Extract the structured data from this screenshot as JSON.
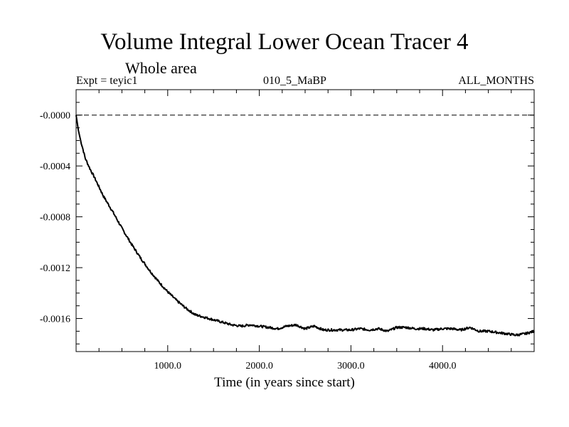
{
  "chart_data": {
    "type": "line",
    "title": "Volume Integral Lower Ocean Tracer 4",
    "subtitle": "Whole area",
    "experiment": "Expt = teyic1",
    "center_label": "010_5_MaBP",
    "right_label": "ALL_MONTHS",
    "xlabel": "Time (in years since start)",
    "ylabel": "",
    "xlim": [
      0,
      5000
    ],
    "ylim": [
      -0.00186,
      0.0002
    ],
    "x_ticks": [
      1000,
      2000,
      3000,
      4000
    ],
    "x_tick_labels": [
      "1000.0",
      "2000.0",
      "3000.0",
      "4000.0"
    ],
    "y_ticks": [
      0.0,
      -0.0004,
      -0.0008,
      -0.0012,
      -0.0016
    ],
    "y_tick_labels": [
      "-0.0000",
      "-0.0004",
      "-0.0008",
      "-0.0012",
      "-0.0016"
    ],
    "reference_line": 0.0,
    "series": [
      {
        "name": "Volume Integral Lower Ocean Tracer 4",
        "x": [
          0,
          25,
          50,
          100,
          150,
          200,
          300,
          400,
          500,
          600,
          700,
          800,
          900,
          1000,
          1100,
          1200,
          1300,
          1400,
          1500,
          1600,
          1700,
          1800,
          1900,
          2000,
          2100,
          2200,
          2300,
          2400,
          2500,
          2600,
          2700,
          2800,
          2900,
          3000,
          3100,
          3200,
          3300,
          3400,
          3500,
          3600,
          3700,
          3800,
          3900,
          4000,
          4100,
          4200,
          4300,
          4400,
          4500,
          4600,
          4700,
          4800,
          4900,
          5000
        ],
        "y": [
          0.0,
          -0.00012,
          -0.0002,
          -0.00034,
          -0.00042,
          -0.00049,
          -0.00064,
          -0.00076,
          -0.00089,
          -0.00101,
          -0.00112,
          -0.00122,
          -0.00131,
          -0.00139,
          -0.00146,
          -0.00152,
          -0.00157,
          -0.00159,
          -0.00161,
          -0.00163,
          -0.00165,
          -0.00166,
          -0.00165,
          -0.00166,
          -0.00167,
          -0.00168,
          -0.00166,
          -0.00165,
          -0.00168,
          -0.00166,
          -0.00169,
          -0.00169,
          -0.00169,
          -0.00169,
          -0.00168,
          -0.00169,
          -0.00168,
          -0.0017,
          -0.00167,
          -0.00167,
          -0.00168,
          -0.00168,
          -0.00169,
          -0.00168,
          -0.00168,
          -0.00169,
          -0.00167,
          -0.0017,
          -0.0017,
          -0.00171,
          -0.00172,
          -0.00173,
          -0.00172,
          -0.0017
        ]
      }
    ]
  }
}
